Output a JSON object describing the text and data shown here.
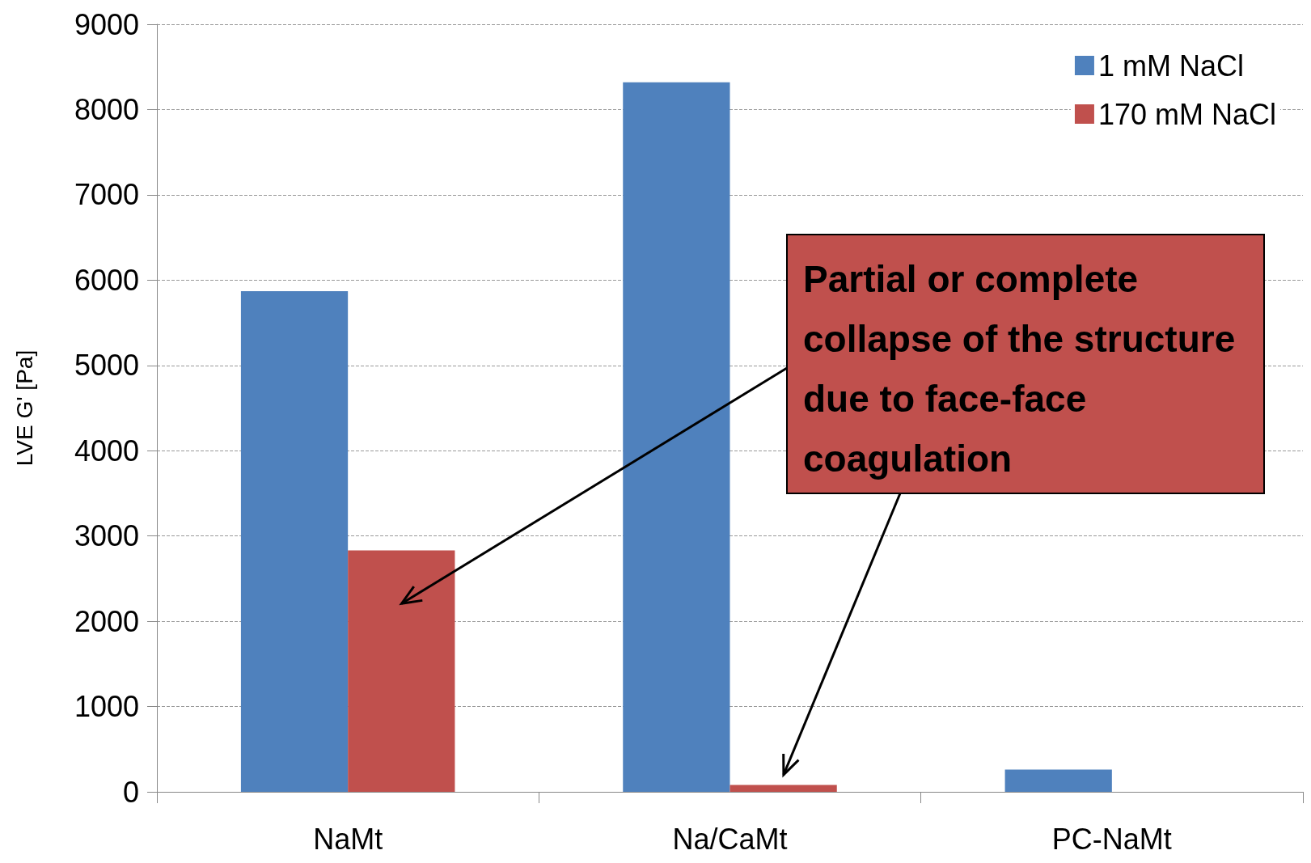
{
  "chart_data": {
    "type": "bar",
    "ylabel": "LVE G' [Pa]",
    "categories": [
      "NaMt",
      "Na/CaMt",
      "PC-NaMt"
    ],
    "series": [
      {
        "name": "1 mM NaCl",
        "color": "#4f81bd",
        "values": [
          5870,
          8320,
          260
        ]
      },
      {
        "name": "170 mM NaCl",
        "color": "#c0504d",
        "values": [
          2830,
          80,
          null
        ]
      }
    ],
    "ylim": [
      0,
      9000
    ],
    "yticks": [
      0,
      1000,
      2000,
      3000,
      4000,
      5000,
      6000,
      7000,
      8000,
      9000
    ],
    "grid": "y",
    "legend": "top right",
    "annotations": [
      "Partial or complete collapse of the structure due to face-face coagulation"
    ]
  }
}
